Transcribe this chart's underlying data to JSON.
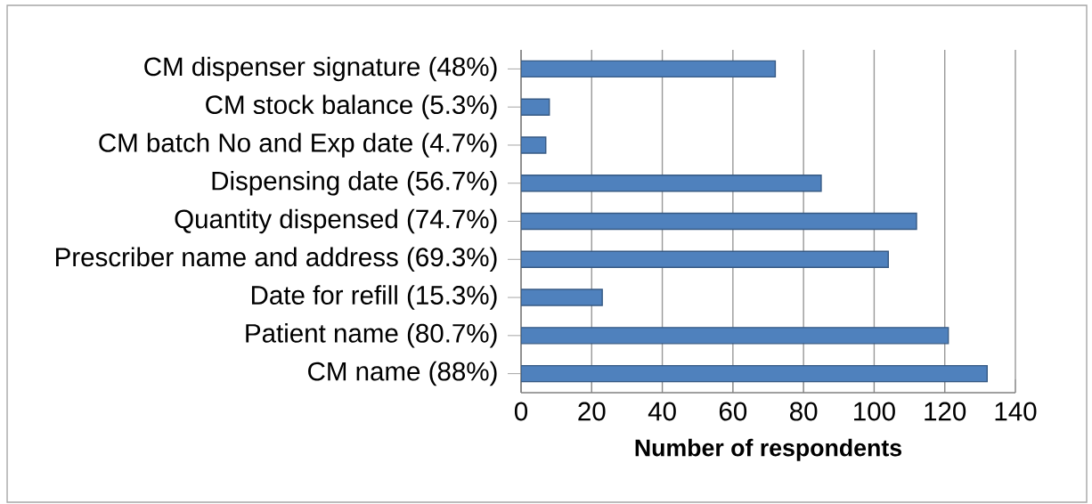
{
  "chart_data": {
    "type": "bar",
    "orientation": "horizontal",
    "categories": [
      "CM dispenser signature (48%)",
      "CM stock balance (5.3%)",
      "CM batch No and Exp date (4.7%)",
      "Dispensing date (56.7%)",
      "Quantity dispensed (74.7%)",
      "Prescriber name and address (69.3%)",
      "Date for refill (15.3%)",
      "Patient name (80.7%)",
      "CM name (88%)"
    ],
    "values": [
      72,
      8,
      7,
      85,
      112,
      104,
      23,
      121,
      132
    ],
    "color": "#4f81bd",
    "xlabel": "**Number of respondents**",
    "xlim": [
      0,
      140
    ],
    "xticks": [
      0,
      20,
      40,
      60,
      80,
      100,
      120,
      140
    ],
    "grid": "x"
  }
}
